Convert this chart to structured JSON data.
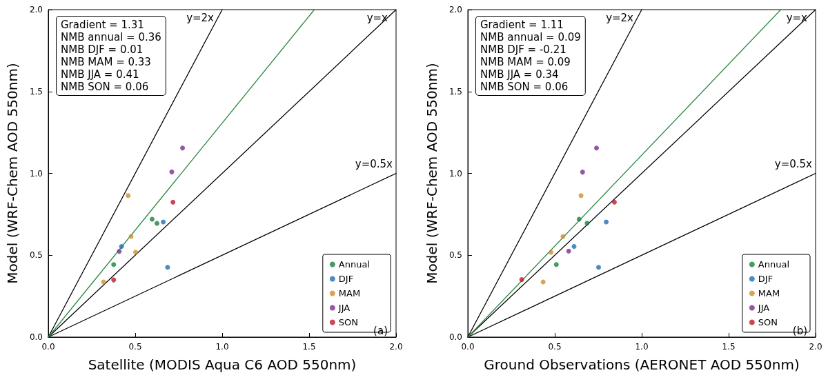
{
  "chart_data": [
    {
      "type": "scatter",
      "xlabel": "Satellite (MODIS Aqua C6 AOD 550nm)",
      "ylabel": "Model (WRF-Chem AOD 550nm)",
      "xlim": [
        0,
        2
      ],
      "ylim": [
        0,
        2
      ],
      "xticks": [
        {
          "value": 0,
          "label": "0.0"
        },
        {
          "value": 0.5,
          "label": "0.5"
        },
        {
          "value": 1,
          "label": "1.0"
        },
        {
          "value": 1.5,
          "label": "1.5"
        },
        {
          "value": 2,
          "label": "2.0"
        }
      ],
      "yticks": [
        {
          "value": 0,
          "label": "0.0"
        },
        {
          "value": 0.5,
          "label": "0.5"
        },
        {
          "value": 1,
          "label": "1.0"
        },
        {
          "value": 1.5,
          "label": "1.5"
        },
        {
          "value": 2,
          "label": "2.0"
        }
      ],
      "grid": false,
      "legend": "bottom right",
      "marker": "circle",
      "series": [
        {
          "name": "Annual",
          "color": "#1b7f3c",
          "x": [
            0.597,
            0.625,
            0.376
          ],
          "values": [
            0.72,
            0.695,
            0.443
          ]
        },
        {
          "name": "DJF",
          "color": "#1f6db5",
          "x": [
            0.661,
            0.421,
            0.686
          ],
          "values": [
            0.703,
            0.554,
            0.426
          ]
        },
        {
          "name": "MAM",
          "color": "#d08c2e",
          "x": [
            0.459,
            0.476,
            0.502,
            0.318
          ],
          "values": [
            0.864,
            0.615,
            0.519,
            0.337
          ]
        },
        {
          "name": "JJA",
          "color": "#7b2d8e",
          "x": [
            0.772,
            0.71,
            0.408
          ],
          "values": [
            1.155,
            1.009,
            0.523
          ]
        },
        {
          "name": "SON",
          "color": "#c0182a",
          "x": [
            0.717,
            0.376
          ],
          "values": [
            0.824,
            0.349
          ]
        },
        {
          "type": "line",
          "name": "y=2x",
          "marker": "none",
          "color": "#000000",
          "x": [
            0,
            1
          ],
          "values": [
            0,
            2
          ]
        },
        {
          "type": "line",
          "name": "y=x",
          "marker": "none",
          "color": "#000000",
          "x": [
            0,
            2
          ],
          "values": [
            0,
            2
          ]
        },
        {
          "type": "line",
          "name": "y=0.5x",
          "marker": "none",
          "color": "#000000",
          "x": [
            0,
            2
          ],
          "values": [
            0,
            1
          ]
        },
        {
          "type": "line",
          "marker": "none",
          "color": "#2e8b45",
          "x": [
            0,
            1.53
          ],
          "values": [
            0,
            2
          ]
        }
      ],
      "annotations": [
        "Gradient = 1.31",
        "NMB annual = 0.36",
        "NMB DJF = 0.01",
        "NMB MAM = 0.33",
        "NMB JJA = 0.41",
        "NMB SON = 0.06",
        "(a)"
      ]
    },
    {
      "type": "scatter",
      "xlabel": "Ground Observations (AERONET AOD 550nm)",
      "ylabel": "Model (WRF-Chem AOD 550nm)",
      "xlim": [
        0,
        2
      ],
      "ylim": [
        0,
        2
      ],
      "xticks": [
        {
          "value": 0,
          "label": "0.0"
        },
        {
          "value": 0.5,
          "label": "0.5"
        },
        {
          "value": 1,
          "label": "1.0"
        },
        {
          "value": 1.5,
          "label": "1.5"
        },
        {
          "value": 2,
          "label": "2.0"
        }
      ],
      "yticks": [
        {
          "value": 0,
          "label": "0.0"
        },
        {
          "value": 0.5,
          "label": "0.5"
        },
        {
          "value": 1,
          "label": "1.0"
        },
        {
          "value": 1.5,
          "label": "1.5"
        },
        {
          "value": 2,
          "label": "2.0"
        }
      ],
      "grid": false,
      "legend": "bottom right",
      "marker": "circle",
      "series": [
        {
          "name": "Annual",
          "color": "#1b7f3c",
          "x": [
            0.64,
            0.686,
            0.509
          ],
          "values": [
            0.72,
            0.696,
            0.443
          ]
        },
        {
          "name": "DJF",
          "color": "#1f6db5",
          "x": [
            0.796,
            0.611,
            0.752
          ],
          "values": [
            0.703,
            0.554,
            0.426
          ]
        },
        {
          "name": "MAM",
          "color": "#d08c2e",
          "x": [
            0.651,
            0.547,
            0.478,
            0.433
          ],
          "values": [
            0.864,
            0.615,
            0.518,
            0.337
          ]
        },
        {
          "name": "JJA",
          "color": "#7b2d8e",
          "x": [
            0.74,
            0.66,
            0.58
          ],
          "values": [
            1.155,
            1.008,
            0.525
          ]
        },
        {
          "name": "SON",
          "color": "#c0182a",
          "x": [
            0.843,
            0.31
          ],
          "values": [
            0.824,
            0.351
          ]
        },
        {
          "type": "line",
          "name": "y=2x",
          "marker": "none",
          "color": "#000000",
          "x": [
            0,
            1
          ],
          "values": [
            0,
            2
          ]
        },
        {
          "type": "line",
          "name": "y=x",
          "marker": "none",
          "color": "#000000",
          "x": [
            0,
            2
          ],
          "values": [
            0,
            2
          ]
        },
        {
          "type": "line",
          "name": "y=0.5x",
          "marker": "none",
          "color": "#000000",
          "x": [
            0,
            2
          ],
          "values": [
            0,
            1
          ]
        },
        {
          "type": "line",
          "marker": "none",
          "color": "#2e8b45",
          "x": [
            0,
            1.8
          ],
          "values": [
            0,
            2
          ]
        }
      ],
      "annotations": [
        "Gradient = 1.11",
        "NMB annual = 0.09",
        "NMB DJF = -0.21",
        "NMB MAM = 0.09",
        "NMB JJA = 0.34",
        "NMB SON = 0.06",
        "(b)"
      ]
    }
  ]
}
